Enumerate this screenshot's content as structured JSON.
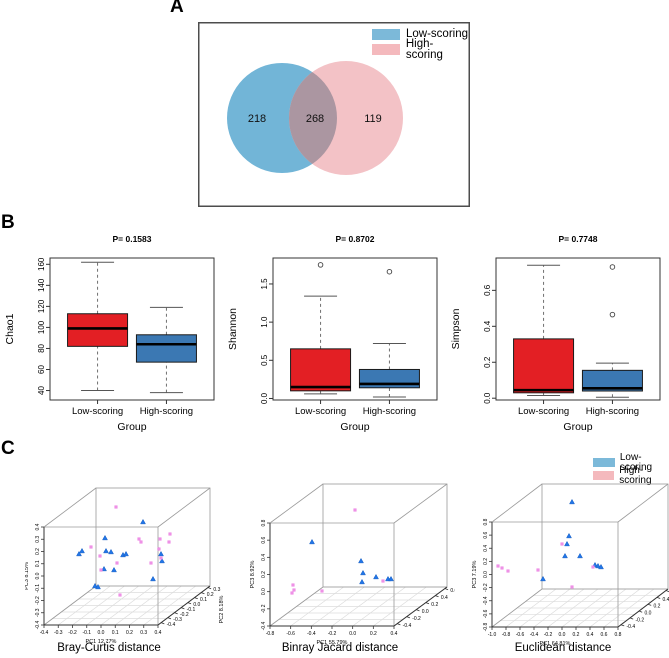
{
  "panel_labels": {
    "a": "A",
    "b": "B",
    "c": "C"
  },
  "colors": {
    "venn_blue": "#72b5d7",
    "venn_pink": "#f3c2c6",
    "venn_overlap": "#ab96a1",
    "legend_blue": "#7cb9d9",
    "legend_pink": "#f4b9bd",
    "box_red": "#e31f24",
    "box_blue": "#3b78b3",
    "point_blue": "#2176e8",
    "point_pink": "#ee90e6"
  },
  "venn": {
    "legend": [
      {
        "label": "Low-scoring",
        "color": "#7cb9d9"
      },
      {
        "label": "High-scoring",
        "color": "#f4b9bd"
      }
    ],
    "values": {
      "left": "218",
      "center": "268",
      "right": "119"
    }
  },
  "c_legend": [
    {
      "label": "Low-scoring",
      "color": "#7cb9d9"
    },
    {
      "label": "High-scoring",
      "color": "#f4b9bd"
    }
  ],
  "chart_data": [
    {
      "type": "venn",
      "groups": [
        "Low-scoring",
        "High-scoring"
      ],
      "unique": [
        218,
        119
      ],
      "overlap": 268
    },
    {
      "type": "box",
      "title": "P= 0.1583",
      "ylabel": "Chao1",
      "xlabel": "Group",
      "categories": [
        "Low-scoring",
        "High-scoring"
      ],
      "yticks": [
        40,
        60,
        80,
        100,
        120,
        140,
        160
      ],
      "ytick_labels": [
        "40",
        "60",
        "80",
        "100",
        "120",
        "140",
        "160"
      ],
      "ylim": [
        31,
        166
      ],
      "series": [
        {
          "name": "Low-scoring",
          "color": "#e31f24",
          "low": 40,
          "q1": 82,
          "median": 99,
          "q3": 113,
          "high": 162,
          "outliers": []
        },
        {
          "name": "High-scoring",
          "color": "#3b78b3",
          "low": 38,
          "q1": 67,
          "median": 84,
          "q3": 93,
          "high": 119,
          "outliers": []
        }
      ]
    },
    {
      "type": "box",
      "title": "P= 0.8702",
      "ylabel": "Shannon",
      "xlabel": "Group",
      "categories": [
        "Low-scoring",
        "High-scoring"
      ],
      "yticks": [
        0,
        0.5,
        1.0,
        1.5
      ],
      "ytick_labels": [
        "0.0",
        "0.5",
        "1.0",
        "1.5"
      ],
      "ylim": [
        -0.02,
        1.84
      ],
      "series": [
        {
          "name": "Low-scoring",
          "color": "#e31f24",
          "low": 0.06,
          "q1": 0.1,
          "median": 0.15,
          "q3": 0.65,
          "high": 1.34,
          "outliers": [
            1.75
          ]
        },
        {
          "name": "High-scoring",
          "color": "#3b78b3",
          "low": 0.02,
          "q1": 0.14,
          "median": 0.19,
          "q3": 0.38,
          "high": 0.72,
          "outliers": [
            1.66
          ]
        }
      ]
    },
    {
      "type": "box",
      "title": "P= 0.7748",
      "ylabel": "Simpson",
      "xlabel": "Group",
      "categories": [
        "Low-scoring",
        "High-scoring"
      ],
      "yticks": [
        0,
        0.2,
        0.4,
        0.6
      ],
      "ytick_labels": [
        "0.0",
        "0.2",
        "0.4",
        "0.6"
      ],
      "ylim": [
        -0.01,
        0.78
      ],
      "series": [
        {
          "name": "Low-scoring",
          "color": "#e31f24",
          "low": 0.015,
          "q1": 0.03,
          "median": 0.045,
          "q3": 0.33,
          "high": 0.74,
          "outliers": []
        },
        {
          "name": "High-scoring",
          "color": "#3b78b3",
          "low": 0.005,
          "q1": 0.04,
          "median": 0.055,
          "q3": 0.155,
          "high": 0.195,
          "outliers": [
            0.465,
            0.73
          ]
        }
      ]
    },
    {
      "type": "scatter3d",
      "title": "Bray-Curtis distance",
      "xlabel": "PC1 12.77%",
      "zlabel": "PC3 8.15%",
      "ylabel": "PC2 8.18%",
      "xticks": [
        "-0.4",
        "-0.3",
        "-0.2",
        "-0.1",
        "0.0",
        "0.1",
        "0.2",
        "0.3",
        "0.4"
      ],
      "zticks": [
        "0.4",
        "0.3",
        "0.2",
        "0.1",
        "0.0",
        "-0.1",
        "-0.2",
        "-0.3",
        "-0.4"
      ],
      "yticks": [
        "-0.4",
        "-0.3",
        "-0.2",
        "-0.1",
        "0.0",
        "0.1",
        "0.2",
        "0.3"
      ],
      "groups": [
        "Low-scoring",
        "High-scoring"
      ],
      "points": [
        [
          118,
          62,
          "L"
        ],
        [
          80,
          78,
          "L"
        ],
        [
          57,
          91,
          "L"
        ],
        [
          54,
          94,
          "L"
        ],
        [
          81,
          91,
          "L"
        ],
        [
          86,
          92,
          "L"
        ],
        [
          98,
          95,
          "L"
        ],
        [
          101,
          94,
          "L"
        ],
        [
          79,
          109,
          "L"
        ],
        [
          89,
          110,
          "L"
        ],
        [
          136,
          94,
          "L"
        ],
        [
          137,
          101,
          "L"
        ],
        [
          128,
          119,
          "L"
        ],
        [
          70,
          126,
          "L"
        ],
        [
          73,
          127,
          "L"
        ],
        [
          91,
          47,
          "H"
        ],
        [
          66,
          87,
          "H"
        ],
        [
          75,
          96,
          "H"
        ],
        [
          92,
          103,
          "H"
        ],
        [
          76,
          110,
          "H"
        ],
        [
          114,
          79,
          "H"
        ],
        [
          116,
          82,
          "H"
        ],
        [
          145,
          74,
          "H"
        ],
        [
          135,
          79,
          "H"
        ],
        [
          144,
          82,
          "H"
        ],
        [
          134,
          89,
          "H"
        ],
        [
          136,
          98,
          "H"
        ],
        [
          126,
          103,
          "H"
        ],
        [
          95,
          135,
          "H"
        ]
      ]
    },
    {
      "type": "scatter3d",
      "title": "Binray Jacard distance",
      "xlabel": "PC1 55.79%",
      "zlabel": "PC3 8.92%",
      "ylabel": "PC2 16.30%",
      "xticks": [
        "-0.8",
        "-0.6",
        "-0.4",
        "-0.2",
        "0.0",
        "0.2",
        "0.4"
      ],
      "zticks": [
        "0.8",
        "0.6",
        "0.4",
        "0.2",
        "0.0",
        "-0.2",
        "-0.4"
      ],
      "yticks": [
        "-0.4",
        "-0.2",
        "0.0",
        "0.2",
        "0.4",
        "0.6"
      ],
      "groups": [
        "Low-scoring",
        "High-scoring"
      ],
      "points": [
        [
          72,
          82,
          "L"
        ],
        [
          121,
          101,
          "L"
        ],
        [
          123,
          113,
          "L"
        ],
        [
          122,
          122,
          "L"
        ],
        [
          136,
          117,
          "L"
        ],
        [
          148,
          119,
          "L"
        ],
        [
          151,
          119,
          "L"
        ],
        [
          115,
          50,
          "H"
        ],
        [
          53,
          125,
          "H"
        ],
        [
          54,
          130,
          "H"
        ],
        [
          52,
          133,
          "H"
        ],
        [
          82,
          131,
          "H"
        ],
        [
          143,
          121,
          "H"
        ]
      ]
    },
    {
      "type": "scatter3d",
      "title": "Euclidean distance",
      "xlabel": "PC1 64.81%",
      "zlabel": "PC3 7.19%",
      "ylabel": "PC2 18.92%",
      "xticks": [
        "-1.0",
        "-0.8",
        "-0.6",
        "-0.4",
        "-0.2",
        "0.0",
        "0.2",
        "0.4",
        "0.6",
        "0.8"
      ],
      "zticks": [
        "0.8",
        "0.6",
        "0.4",
        "0.2",
        "0.0",
        "-0.2",
        "-0.4",
        "-0.6",
        "-0.8"
      ],
      "yticks": [
        "-0.4",
        "-0.2",
        "0.0",
        "0.2",
        "0.4",
        "0.6"
      ],
      "groups": [
        "Low-scoring",
        "High-scoring"
      ],
      "points": [
        [
          117,
          42,
          "L"
        ],
        [
          114,
          76,
          "L"
        ],
        [
          112,
          84,
          "L"
        ],
        [
          110,
          96,
          "L"
        ],
        [
          88,
          119,
          "L"
        ],
        [
          140,
          105,
          "L"
        ],
        [
          143,
          106,
          "L"
        ],
        [
          146,
          107,
          "L"
        ],
        [
          125,
          96,
          "L"
        ],
        [
          107,
          84,
          "H"
        ],
        [
          83,
          110,
          "H"
        ],
        [
          47,
          108,
          "H"
        ],
        [
          53,
          111,
          "H"
        ],
        [
          138,
          107,
          "H"
        ],
        [
          117,
          127,
          "H"
        ],
        [
          43,
          106,
          "H"
        ]
      ]
    }
  ]
}
